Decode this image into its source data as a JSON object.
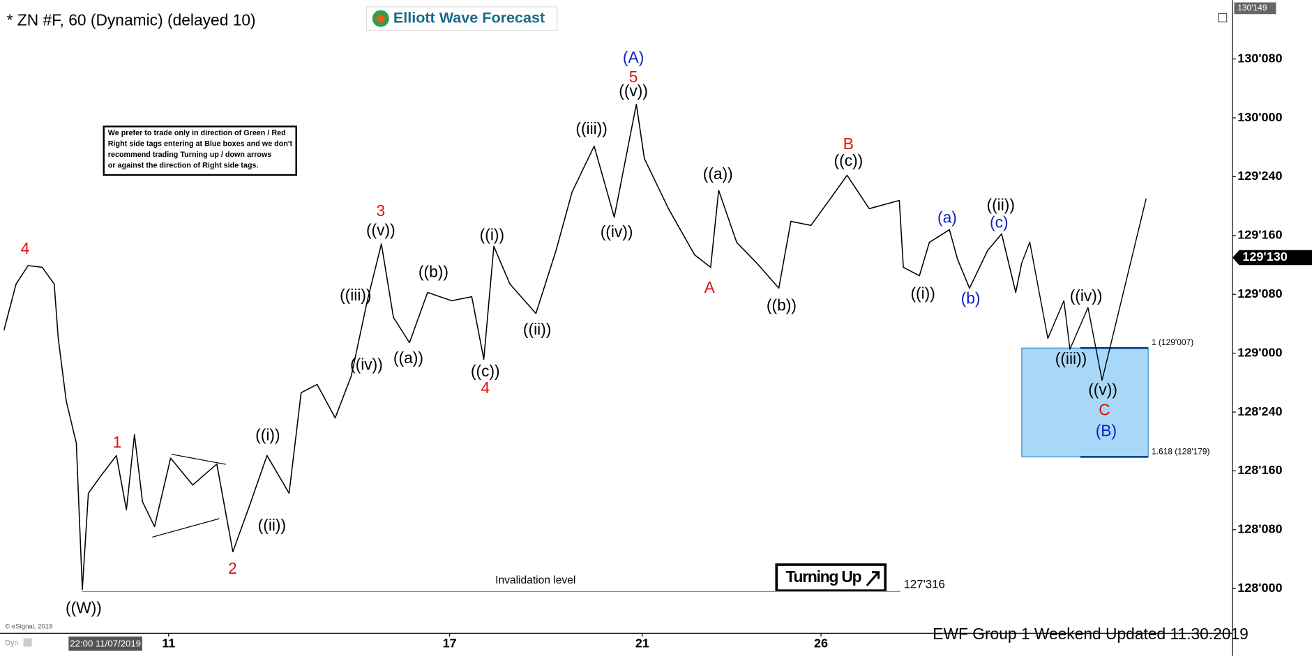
{
  "chart_data": {
    "type": "line",
    "title": "* ZN #F, 60 (Dynamic) (delayed 10)",
    "brand": "Elliott Wave Forecast",
    "footer": "EWF Group 1  Weekend  Updated 11.30.2019",
    "copyright": "© eSignal, 2019",
    "corner_label": "Dyn",
    "cursor_date": "22:00 11/07/2019",
    "note": [
      "We prefer to trade only in direction of Green / Red",
      "Right side tags entering at Blue boxes and we don't",
      "recommend trading Turning up / down arrows",
      "or against the direction of Right side tags."
    ],
    "badge": "Turning Up",
    "ylim": [
      127.81,
      130.5
    ],
    "yticks": [
      {
        "value": 128,
        "label": "128'000"
      },
      {
        "value": 128.25,
        "label": "128'080"
      },
      {
        "value": 128.5,
        "label": "128'160"
      },
      {
        "value": 128.75,
        "label": "128'240"
      },
      {
        "value": 129,
        "label": "129'000"
      },
      {
        "value": 129.25,
        "label": "129'080"
      },
      {
        "value": 129.5,
        "label": "129'160"
      },
      {
        "value": 129.75,
        "label": "129'240"
      },
      {
        "value": 130,
        "label": "130'000"
      },
      {
        "value": 130.25,
        "label": "130'080"
      }
    ],
    "xlim": [
      0,
      614
    ],
    "xticks": [
      {
        "value": 84,
        "label": "11"
      },
      {
        "value": 224,
        "label": "17"
      },
      {
        "value": 320,
        "label": "21"
      },
      {
        "value": 409,
        "label": "26"
      }
    ],
    "last_price": {
      "value": 129.40625,
      "label": "129'130"
    },
    "high_tag": {
      "value": 130.465625,
      "label": "130'149"
    },
    "price": {
      "color": "#000000",
      "x": [
        2,
        8,
        14,
        21,
        27,
        29,
        33,
        38,
        41,
        44,
        50,
        58,
        63,
        67,
        71,
        77,
        85,
        96,
        108,
        116,
        125,
        133,
        144,
        150,
        158,
        167,
        175,
        183,
        190,
        196,
        204,
        213,
        225,
        235,
        241,
        246,
        254,
        267,
        277,
        285,
        296,
        306,
        317,
        321,
        333,
        346,
        354,
        358,
        367,
        377,
        388,
        394,
        404,
        413,
        422,
        433,
        448,
        450,
        458,
        463,
        473,
        477,
        483,
        492,
        499,
        506,
        509
      ],
      "values": [
        129.098,
        129.294,
        129.372,
        129.365,
        129.294,
        129.063,
        128.796,
        128.618,
        127.996,
        128.405,
        128.476,
        128.565,
        128.334,
        128.654,
        128.369,
        128.263,
        128.554,
        128.44,
        128.529,
        128.156,
        128.369,
        128.565,
        128.405,
        128.832,
        128.867,
        128.725,
        128.903,
        129.223,
        129.464,
        129.152,
        129.045,
        129.258,
        129.223,
        129.24,
        128.974,
        129.454,
        129.294,
        129.169,
        129.436,
        129.685,
        129.88,
        129.578,
        130.058,
        129.827,
        129.614,
        129.418,
        129.365,
        129.692,
        129.471,
        129.383,
        129.276,
        129.56,
        129.543,
        129.649,
        129.756,
        129.614,
        129.649,
        129.365,
        129.329,
        129.471,
        129.525,
        129.4,
        129.276,
        129.436,
        129.507,
        129.258,
        129.383
      ]
    },
    "projection": {
      "color": "#000000",
      "x": [
        509,
        513,
        522,
        530,
        533,
        542,
        549,
        571
      ],
      "values": [
        129.383,
        129.472,
        129.063,
        129.223,
        129.017,
        129.194,
        128.885,
        129.657
      ]
    },
    "invalidation": {
      "value": 127.9875,
      "label": "127'316",
      "text": "Invalidation level",
      "color": "#33cc33"
    },
    "target_box": {
      "top": {
        "value": 129.021875,
        "label": "1 (129'007)"
      },
      "bottom": {
        "value": 128.559375,
        "label": "1.618 (128'179)"
      },
      "x": [
        509,
        572
      ],
      "color": "#a8d8f8"
    },
    "annotations": [
      {
        "text": "4",
        "color": "red"
      },
      {
        "text": "1",
        "color": "red"
      },
      {
        "text": "2",
        "color": "red"
      },
      {
        "text": "((W))",
        "color": "black"
      },
      {
        "text": "((i))",
        "color": "black"
      },
      {
        "text": "((ii))",
        "color": "black"
      },
      {
        "text": "3",
        "color": "red"
      },
      {
        "text": "((v))",
        "color": "black"
      },
      {
        "text": "((iii))",
        "color": "black"
      },
      {
        "text": "((iv))",
        "color": "black"
      },
      {
        "text": "((a))",
        "color": "black"
      },
      {
        "text": "((b))",
        "color": "black"
      },
      {
        "text": "((c))",
        "color": "black"
      },
      {
        "text": "4",
        "color": "red"
      },
      {
        "text": "((i))",
        "color": "black"
      },
      {
        "text": "((ii))",
        "color": "black"
      },
      {
        "text": "((iii))",
        "color": "black"
      },
      {
        "text": "((iv))",
        "color": "black"
      },
      {
        "text": "(A)",
        "color": "blue"
      },
      {
        "text": "5",
        "color": "red"
      },
      {
        "text": "((v))",
        "color": "black"
      },
      {
        "text": "((a))",
        "color": "black"
      },
      {
        "text": "A",
        "color": "red"
      },
      {
        "text": "B",
        "color": "red"
      },
      {
        "text": "((c))",
        "color": "black"
      },
      {
        "text": "((b))",
        "color": "black"
      },
      {
        "text": "((i))",
        "color": "black"
      },
      {
        "text": "(a)",
        "color": "blue"
      },
      {
        "text": "(b)",
        "color": "blue"
      },
      {
        "text": "((ii))",
        "color": "black"
      },
      {
        "text": "(c)",
        "color": "blue"
      },
      {
        "text": "((iv))",
        "color": "black"
      },
      {
        "text": "((iii))",
        "color": "black"
      },
      {
        "text": "((v))",
        "color": "black"
      },
      {
        "text": "C",
        "color": "red"
      },
      {
        "text": "(B)",
        "color": "blue"
      }
    ]
  }
}
